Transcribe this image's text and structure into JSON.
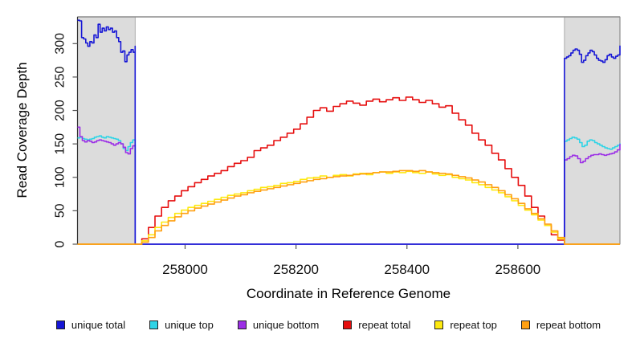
{
  "figure": {
    "xlabel": "Coordinate in Reference Genome",
    "ylabel": "Read Coverage Depth"
  },
  "chart_data": {
    "type": "line",
    "title": "",
    "xlabel": "Coordinate in Reference Genome",
    "ylabel": "Read Coverage Depth",
    "xlim": [
      257806,
      258784
    ],
    "ylim": [
      0,
      340
    ],
    "x_ticks": [
      258000,
      258200,
      258400,
      258600
    ],
    "y_ticks": [
      0,
      50,
      100,
      150,
      200,
      250,
      300
    ],
    "grid": false,
    "legend_position": "bottom",
    "shaded_regions": [
      {
        "x0": 257806,
        "x1": 257910,
        "fill": "#dcdcdc",
        "border": "#aaaaaa"
      },
      {
        "x0": 258684,
        "x1": 258784,
        "fill": "#dcdcdc",
        "border": "#aaaaaa"
      }
    ],
    "colors": {
      "unique_total": "#1616d6",
      "unique_top": "#2fd4e6",
      "unique_bottom": "#9c2fe6",
      "repeat_total": "#e60f0f",
      "repeat_top": "#fde910",
      "repeat_bottom": "#ffa012",
      "shading": "#dcdcdc",
      "axis": "#333333",
      "box": "#8c8c8c"
    },
    "series": [
      {
        "name": "unique total",
        "color": "#1616d6",
        "segments": [
          {
            "x0": 257806,
            "x1": 257910,
            "values": [
              335,
              334,
              309,
              307,
              301,
              296,
              303,
              301,
              313,
              309,
              329,
              317,
              323,
              319,
              325,
              321,
              323,
              317,
              319,
              309,
              303,
              287,
              289,
              273,
              283,
              287,
              291,
              287,
              296
            ]
          },
          {
            "x0": 257910,
            "x1": 258684,
            "values": [
              0,
              0
            ]
          },
          {
            "x0": 258684,
            "x1": 258784,
            "values": [
              278,
              280,
              282,
              286,
              290,
              292,
              290,
              284,
              272,
              275,
              282,
              286,
              290,
              288,
              283,
              278,
              275,
              274,
              272,
              276,
              282,
              284,
              280,
              278,
              281,
              283,
              297
            ]
          }
        ]
      },
      {
        "name": "unique top",
        "color": "#2fd4e6",
        "segments": [
          {
            "x0": 257806,
            "x1": 257910,
            "values": [
              159,
              160,
              158,
              157,
              156,
              157,
              158,
              160,
              161,
              162,
              160,
              159,
              161,
              160,
              159,
              158,
              157,
              155,
              150,
              143,
              140,
              146,
              152,
              156,
              157
            ]
          },
          {
            "x0": 257910,
            "x1": 258684,
            "values": [
              0,
              0
            ]
          },
          {
            "x0": 258684,
            "x1": 258784,
            "values": [
              154,
              156,
              158,
              160,
              159,
              157,
              152,
              146,
              148,
              154,
              156,
              155,
              152,
              150,
              148,
              146,
              144,
              143,
              142,
              144,
              146,
              148,
              151
            ]
          }
        ]
      },
      {
        "name": "unique bottom",
        "color": "#9c2fe6",
        "segments": [
          {
            "x0": 257806,
            "x1": 257910,
            "values": [
              175,
              161,
              155,
              153,
              155,
              154,
              152,
              153,
              155,
              156,
              155,
              154,
              153,
              152,
              150,
              148,
              150,
              152,
              150,
              145,
              137,
              135,
              143,
              147,
              149
            ]
          },
          {
            "x0": 257910,
            "x1": 258684,
            "values": [
              0,
              0
            ]
          },
          {
            "x0": 258684,
            "x1": 258784,
            "values": [
              126,
              128,
              131,
              133,
              132,
              128,
              122,
              124,
              128,
              131,
              133,
              134,
              134,
              135,
              134,
              133,
              134,
              135,
              136,
              138,
              141,
              150
            ]
          }
        ]
      },
      {
        "name": "repeat total",
        "color": "#e60f0f",
        "segments": [
          {
            "x0": 257806,
            "x1": 257910,
            "values": [
              0,
              0
            ]
          },
          {
            "x0": 257910,
            "x1": 258684,
            "values": [
              0,
              8,
              25,
              42,
              55,
              65,
              72,
              80,
              86,
              92,
              97,
              102,
              106,
              110,
              116,
              121,
              125,
              130,
              140,
              144,
              148,
              155,
              160,
              166,
              172,
              180,
              190,
              200,
              204,
              199,
              206,
              210,
              214,
              211,
              208,
              214,
              217,
              213,
              216,
              219,
              215,
              220,
              216,
              212,
              215,
              210,
              205,
              207,
              196,
              186,
              178,
              166,
              156,
              148,
              136,
              126,
              113,
              100,
              88,
              72,
              55,
              42,
              28,
              14,
              6,
              0
            ]
          },
          {
            "x0": 258684,
            "x1": 258784,
            "values": [
              0,
              0
            ]
          }
        ]
      },
      {
        "name": "repeat top",
        "color": "#fde910",
        "segments": [
          {
            "x0": 257806,
            "x1": 257910,
            "values": [
              0,
              0
            ]
          },
          {
            "x0": 257910,
            "x1": 258684,
            "values": [
              0,
              5,
              14,
              25,
              33,
              40,
              46,
              51,
              55,
              58,
              61,
              64,
              67,
              70,
              73,
              75,
              77,
              80,
              82,
              85,
              86,
              88,
              91,
              92,
              94,
              97,
              99,
              100,
              102,
              100,
              103,
              104,
              102,
              105,
              106,
              104,
              107,
              108,
              106,
              108,
              107,
              109,
              107,
              106,
              108,
              105,
              103,
              104,
              100,
              98,
              96,
              92,
              89,
              85,
              81,
              77,
              71,
              65,
              58,
              51,
              44,
              36,
              28,
              18,
              8,
              0
            ]
          },
          {
            "x0": 258684,
            "x1": 258784,
            "values": [
              0,
              0
            ]
          }
        ]
      },
      {
        "name": "repeat bottom",
        "color": "#ffa012",
        "segments": [
          {
            "x0": 257806,
            "x1": 257910,
            "values": [
              0,
              0
            ]
          },
          {
            "x0": 257910,
            "x1": 258684,
            "values": [
              0,
              3,
              10,
              20,
              28,
              35,
              41,
              46,
              50,
              54,
              57,
              60,
              63,
              66,
              69,
              72,
              74,
              77,
              79,
              81,
              83,
              85,
              87,
              89,
              91,
              93,
              95,
              97,
              98,
              100,
              101,
              102,
              103,
              104,
              105,
              106,
              107,
              108,
              108,
              109,
              110,
              110,
              109,
              110,
              108,
              107,
              106,
              105,
              103,
              101,
              99,
              96,
              93,
              89,
              85,
              80,
              74,
              68,
              61,
              53,
              46,
              38,
              30,
              20,
              10,
              0
            ]
          },
          {
            "x0": 258684,
            "x1": 258784,
            "values": [
              0,
              0
            ]
          }
        ]
      }
    ]
  }
}
